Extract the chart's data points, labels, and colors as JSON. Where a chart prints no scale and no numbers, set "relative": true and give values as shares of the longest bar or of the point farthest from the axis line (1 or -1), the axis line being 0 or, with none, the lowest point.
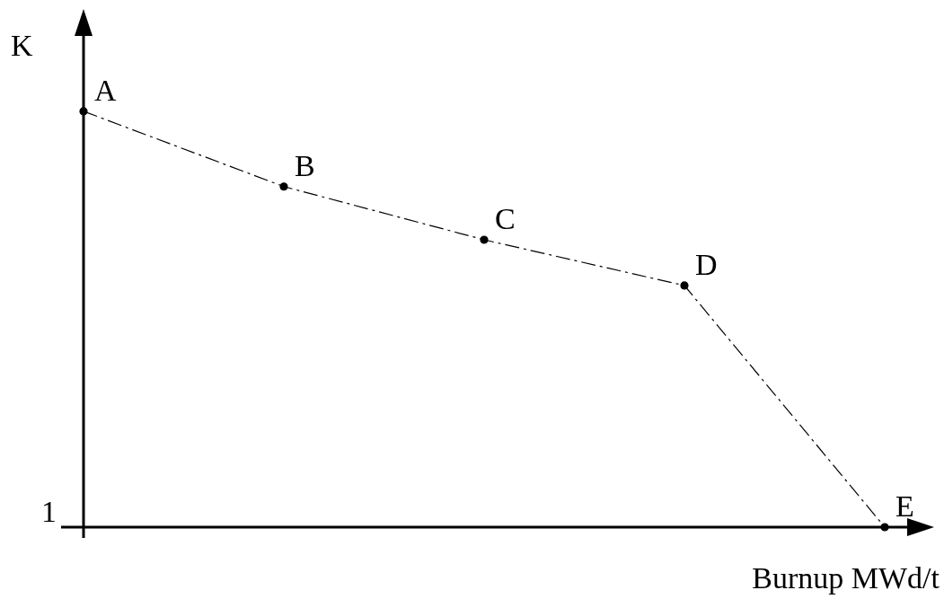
{
  "chart_data": {
    "type": "line",
    "relative": true,
    "xlabel": "Burnup MWd/t",
    "ylabel": "K",
    "categories": [
      null,
      null,
      null,
      null,
      null
    ],
    "series": [
      {
        "color": "#000000",
        "values": [
          1,
          0.819,
          0.691,
          0.581,
          0
        ]
      }
    ],
    "marker": "circle",
    "line_style": "dashed",
    "legend": false,
    "annotations": [
      "1",
      "A",
      "B",
      "C",
      "D",
      "E"
    ]
  }
}
